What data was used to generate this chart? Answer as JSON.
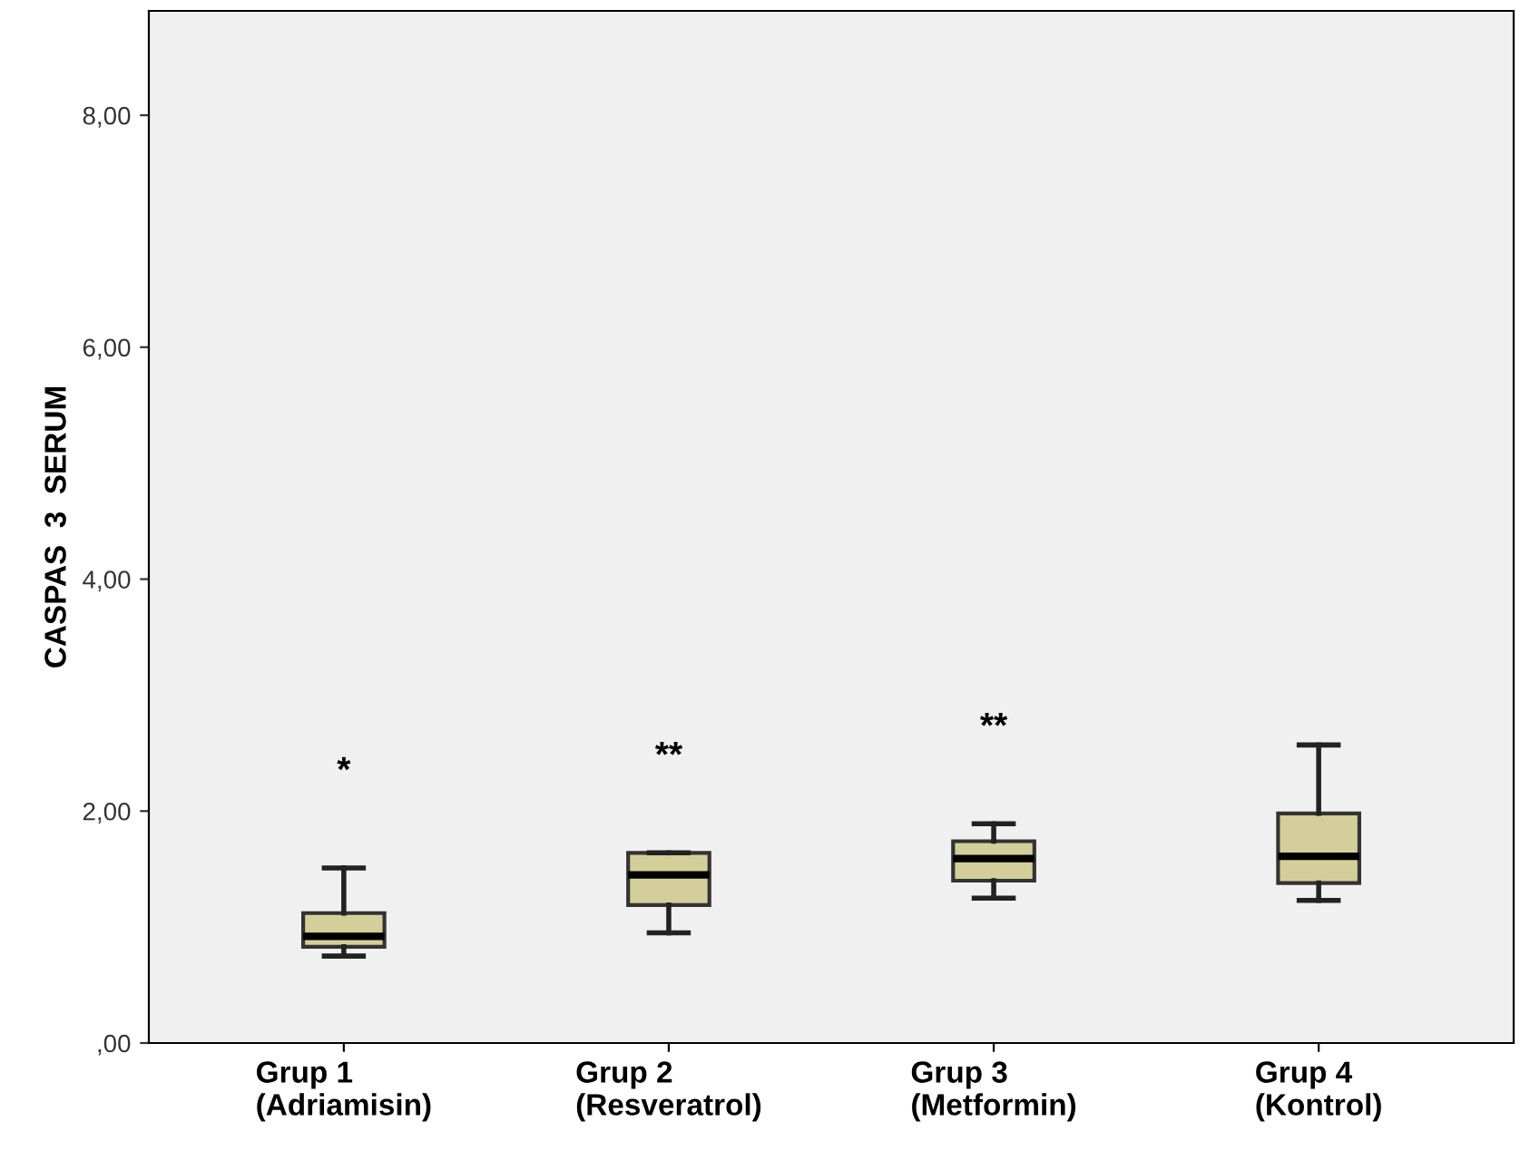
{
  "chart_data": {
    "type": "box",
    "ylabel": "CASPAS  3  SERUM",
    "categories": [
      "Grup 1\n(Adriamisin)",
      "Grup 2\n(Resveratrol)",
      "Grup 3\n(Metformin)",
      "Grup 4\n(Kontrol)"
    ],
    "boxes": [
      {
        "low": 0.75,
        "q1": 0.83,
        "median": 0.92,
        "q3": 1.12,
        "high": 1.51
      },
      {
        "low": 0.95,
        "q1": 1.19,
        "median": 1.45,
        "q3": 1.64,
        "high": 1.64
      },
      {
        "low": 1.25,
        "q1": 1.4,
        "median": 1.59,
        "q3": 1.74,
        "high": 1.89
      },
      {
        "low": 1.23,
        "q1": 1.38,
        "median": 1.61,
        "q3": 1.98,
        "high": 2.57
      }
    ],
    "color": "#d4cf9a",
    "ylim": [
      0,
      8.9
    ],
    "yticks": [
      {
        "value": 0,
        "label": ",00"
      },
      {
        "value": 2,
        "label": "2,00"
      },
      {
        "value": 4,
        "label": "4,00"
      },
      {
        "value": 6,
        "label": "6,00"
      },
      {
        "value": 8,
        "label": "8,00"
      }
    ],
    "annotations": [
      "*",
      "**",
      "**"
    ],
    "grid": false
  }
}
